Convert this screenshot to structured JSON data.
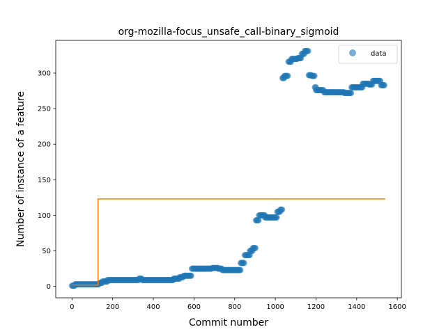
{
  "chart_data": {
    "type": "scatter",
    "title": "org-mozilla-focus_unsafe_call-binary_sigmoid",
    "xlabel": "Commit number",
    "ylabel": "Number of instance of a feature",
    "xlim": [
      -80,
      1620
    ],
    "ylim": [
      -16,
      346
    ],
    "xticks": [
      0,
      200,
      400,
      600,
      800,
      1000,
      1200,
      1400,
      1600
    ],
    "yticks": [
      0,
      50,
      100,
      150,
      200,
      250,
      300
    ],
    "legend": {
      "position": "top-right",
      "entries": [
        "data"
      ]
    },
    "grid": false,
    "series": [
      {
        "name": "data",
        "kind": "scatter",
        "color": "#1f77b4",
        "segments": [
          [
            0,
            15,
            1
          ],
          [
            15,
            135,
            3
          ],
          [
            135,
            150,
            5
          ],
          [
            150,
            175,
            7
          ],
          [
            175,
            330,
            9
          ],
          [
            330,
            345,
            11
          ],
          [
            345,
            500,
            9
          ],
          [
            500,
            530,
            11
          ],
          [
            530,
            550,
            13
          ],
          [
            550,
            590,
            15
          ],
          [
            590,
            690,
            25
          ],
          [
            690,
            720,
            26
          ],
          [
            720,
            740,
            25
          ],
          [
            740,
            800,
            23
          ],
          [
            800,
            830,
            23
          ],
          [
            830,
            850,
            33
          ],
          [
            850,
            875,
            44
          ],
          [
            875,
            890,
            50
          ],
          [
            890,
            905,
            54
          ],
          [
            905,
            920,
            93
          ],
          [
            920,
            950,
            100
          ],
          [
            950,
            975,
            97
          ],
          [
            975,
            1010,
            97
          ],
          [
            1010,
            1025,
            105
          ],
          [
            1025,
            1035,
            108
          ],
          [
            1035,
            1045,
            293
          ],
          [
            1045,
            1065,
            296
          ],
          [
            1065,
            1080,
            316
          ],
          [
            1080,
            1110,
            320
          ],
          [
            1110,
            1130,
            321
          ],
          [
            1130,
            1145,
            327
          ],
          [
            1145,
            1165,
            331
          ],
          [
            1165,
            1180,
            297
          ],
          [
            1180,
            1195,
            296
          ],
          [
            1195,
            1200,
            280
          ],
          [
            1200,
            1240,
            276
          ],
          [
            1240,
            1270,
            273
          ],
          [
            1270,
            1340,
            273
          ],
          [
            1340,
            1375,
            272
          ],
          [
            1375,
            1400,
            280
          ],
          [
            1400,
            1430,
            280
          ],
          [
            1430,
            1460,
            285
          ],
          [
            1460,
            1480,
            284
          ],
          [
            1480,
            1520,
            289
          ],
          [
            1520,
            1540,
            283
          ]
        ]
      },
      {
        "name": "",
        "kind": "step-line",
        "color": "#ff7f0e",
        "points": [
          [
            0,
            2
          ],
          [
            128,
            2
          ],
          [
            128,
            123
          ],
          [
            1540,
            123
          ]
        ]
      }
    ]
  }
}
